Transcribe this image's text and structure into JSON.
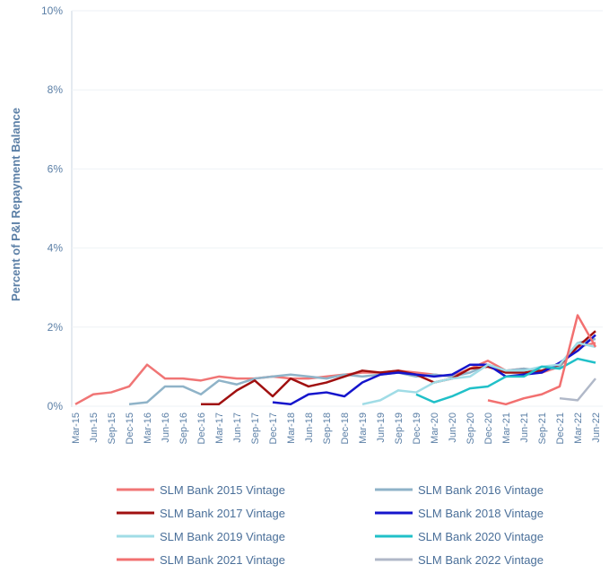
{
  "chart_data": {
    "type": "line",
    "y_label": "Percent of P&I Repayment  Balance",
    "categories": [
      "Mar-15",
      "Jun-15",
      "Sep-15",
      "Dec-15",
      "Mar-16",
      "Jun-16",
      "Sep-16",
      "Dec-16",
      "Mar-17",
      "Jun-17",
      "Sep-17",
      "Dec-17",
      "Mar-18",
      "Jun-18",
      "Sep-18",
      "Dec-18",
      "Mar-19",
      "Jun-19",
      "Sep-19",
      "Dec-19",
      "Mar-20",
      "Jun-20",
      "Sep-20",
      "Dec-20",
      "Mar-21",
      "Jun-21",
      "Sep-21",
      "Dec-21",
      "Mar-22",
      "Jun-22"
    ],
    "ylim": [
      0,
      10
    ],
    "yticks": [
      {
        "value": 0,
        "label": "0%"
      },
      {
        "value": 2,
        "label": "2%"
      },
      {
        "value": 4,
        "label": "4%"
      },
      {
        "value": 6,
        "label": "6%"
      },
      {
        "value": 8,
        "label": "8%"
      },
      {
        "value": 10,
        "label": "10%"
      }
    ],
    "grid": true,
    "series": [
      {
        "name": "SLM Bank 2015 Vintage",
        "color": "#f07575",
        "values": [
          0.05,
          0.3,
          0.35,
          0.5,
          1.05,
          0.7,
          0.7,
          0.65,
          0.75,
          0.7,
          0.7,
          0.75,
          0.7,
          0.7,
          0.75,
          0.8,
          0.85,
          0.85,
          0.9,
          0.85,
          0.8,
          0.75,
          0.95,
          1.15,
          0.9,
          0.95,
          0.85,
          1.0,
          1.5,
          1.6
        ]
      },
      {
        "name": "SLM Bank 2016 Vintage",
        "color": "#8fb3c8",
        "values": [
          null,
          null,
          null,
          0.05,
          0.1,
          0.5,
          0.5,
          0.3,
          0.65,
          0.55,
          0.7,
          0.75,
          0.8,
          0.75,
          0.7,
          0.8,
          0.75,
          0.8,
          0.85,
          0.75,
          0.8,
          0.75,
          0.85,
          1.05,
          0.9,
          0.95,
          0.9,
          1.0,
          1.6,
          1.7
        ]
      },
      {
        "name": "SLM Bank 2017 Vintage",
        "color": "#a01010",
        "values": [
          null,
          null,
          null,
          null,
          null,
          null,
          null,
          0.05,
          0.05,
          0.4,
          0.65,
          0.25,
          0.7,
          0.5,
          0.6,
          0.75,
          0.9,
          0.85,
          0.9,
          0.8,
          0.6,
          0.7,
          0.95,
          1.0,
          0.85,
          0.85,
          0.9,
          1.05,
          1.5,
          1.9
        ]
      },
      {
        "name": "SLM Bank 2018 Vintage",
        "color": "#1515cc",
        "values": [
          null,
          null,
          null,
          null,
          null,
          null,
          null,
          null,
          null,
          null,
          null,
          0.1,
          0.05,
          0.3,
          0.35,
          0.25,
          0.6,
          0.8,
          0.85,
          0.8,
          0.75,
          0.8,
          1.05,
          1.05,
          0.75,
          0.8,
          0.85,
          1.1,
          1.4,
          1.8
        ]
      },
      {
        "name": "SLM Bank 2019 Vintage",
        "color": "#a0dce6",
        "values": [
          null,
          null,
          null,
          null,
          null,
          null,
          null,
          null,
          null,
          null,
          null,
          null,
          null,
          null,
          null,
          null,
          0.05,
          0.15,
          0.4,
          0.35,
          0.6,
          0.7,
          0.75,
          1.05,
          0.9,
          0.9,
          1.0,
          1.05,
          1.6,
          1.5
        ]
      },
      {
        "name": "SLM Bank 2020 Vintage",
        "color": "#20c0c8",
        "values": [
          null,
          null,
          null,
          null,
          null,
          null,
          null,
          null,
          null,
          null,
          null,
          null,
          null,
          null,
          null,
          null,
          null,
          null,
          null,
          0.3,
          0.1,
          0.25,
          0.45,
          0.5,
          0.75,
          0.75,
          1.0,
          0.95,
          1.2,
          1.1
        ]
      },
      {
        "name": "SLM Bank 2021 Vintage",
        "color": "#f27070",
        "values": [
          null,
          null,
          null,
          null,
          null,
          null,
          null,
          null,
          null,
          null,
          null,
          null,
          null,
          null,
          null,
          null,
          null,
          null,
          null,
          null,
          null,
          null,
          null,
          0.15,
          0.05,
          0.2,
          0.3,
          0.5,
          2.3,
          1.5
        ]
      },
      {
        "name": "SLM Bank 2022 Vintage",
        "color": "#b0b8c8",
        "values": [
          null,
          null,
          null,
          null,
          null,
          null,
          null,
          null,
          null,
          null,
          null,
          null,
          null,
          null,
          null,
          null,
          null,
          null,
          null,
          null,
          null,
          null,
          null,
          null,
          null,
          null,
          null,
          0.2,
          0.15,
          0.7
        ]
      }
    ]
  }
}
